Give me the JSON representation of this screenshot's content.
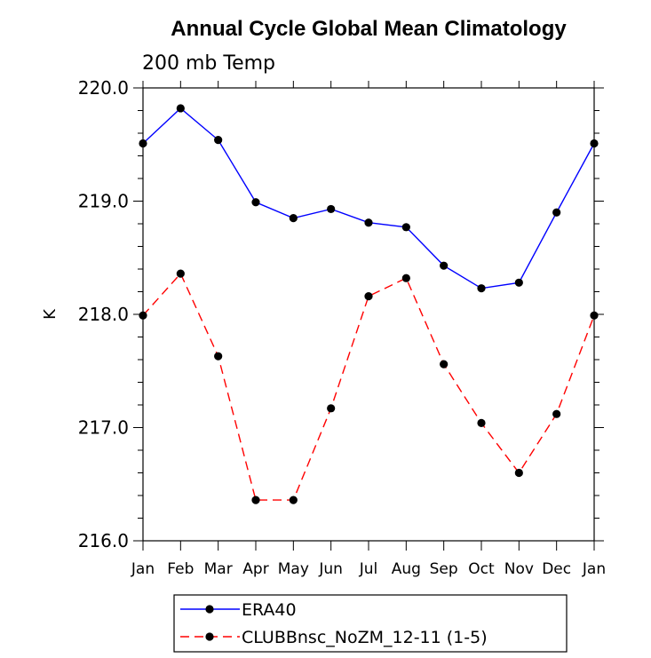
{
  "chart_data": {
    "type": "line",
    "title": "Annual Cycle Global Mean Climatology",
    "subtitle": "200 mb Temp",
    "ylabel": "K",
    "xlabel": "",
    "ylim": [
      216.0,
      220.0
    ],
    "yticks": [
      "216.0",
      "217.0",
      "218.0",
      "219.0",
      "220.0"
    ],
    "categories": [
      "Jan",
      "Feb",
      "Mar",
      "Apr",
      "May",
      "Jun",
      "Jul",
      "Aug",
      "Sep",
      "Oct",
      "Nov",
      "Dec",
      "Jan"
    ],
    "series": [
      {
        "name": "ERA40",
        "color": "#0000ff",
        "dash": "solid",
        "values": [
          219.51,
          219.82,
          219.54,
          218.99,
          218.85,
          218.93,
          218.81,
          218.77,
          218.43,
          218.23,
          218.28,
          218.9,
          219.51
        ]
      },
      {
        "name": "CLUBBnsc_NoZM_12-11 (1-5)",
        "color": "#ff0000",
        "dash": "dashed",
        "values": [
          217.99,
          218.36,
          217.63,
          216.36,
          216.36,
          217.17,
          218.16,
          218.32,
          217.56,
          217.04,
          216.6,
          217.12,
          217.99
        ]
      }
    ],
    "grid": false,
    "legend_position": "bottom"
  }
}
